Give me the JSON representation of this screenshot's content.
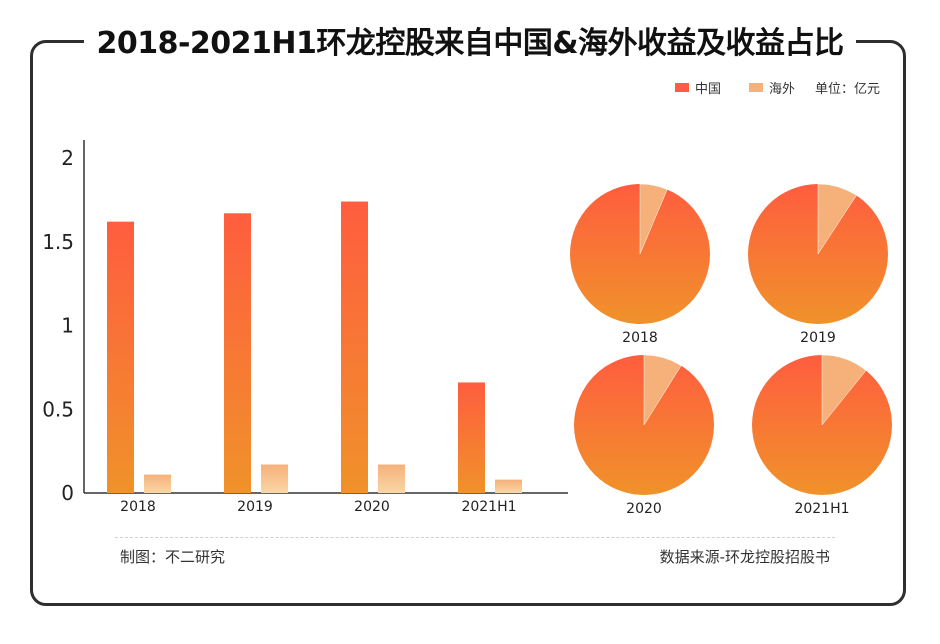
{
  "title": "2018-2021H1环龙控股来自中国&海外收益及收益占比",
  "legend": {
    "china": "中国",
    "overseas": "海外",
    "unit": "单位：亿元"
  },
  "colors": {
    "china_top": "#ff5d3f",
    "china_bottom": "#f0922a",
    "overseas_top": "#f6b07a",
    "overseas_bottom": "#f9d7a6",
    "frame": "#2e2e2e"
  },
  "chart_data": [
    {
      "type": "bar",
      "categories": [
        "2018",
        "2019",
        "2020",
        "2021H1"
      ],
      "series": [
        {
          "name": "中国",
          "values": [
            1.62,
            1.67,
            1.74,
            0.66
          ]
        },
        {
          "name": "海外",
          "values": [
            0.11,
            0.17,
            0.17,
            0.08
          ]
        }
      ],
      "yticks": [
        "0",
        "0.5",
        "1",
        "1.5",
        "2"
      ],
      "ylim": [
        0,
        2
      ],
      "title": "",
      "xlabel": "",
      "ylabel": ""
    },
    {
      "type": "pie",
      "labels": [
        "中国",
        "海外"
      ],
      "charts": [
        {
          "name": "2018",
          "values": [
            1.62,
            0.11
          ]
        },
        {
          "name": "2019",
          "values": [
            1.67,
            0.17
          ]
        },
        {
          "name": "2020",
          "values": [
            1.74,
            0.17
          ]
        },
        {
          "name": "2021H1",
          "values": [
            0.66,
            0.08
          ]
        }
      ]
    }
  ],
  "footer": {
    "credit": "制图：不二研究",
    "source": "数据来源-环龙控股招股书"
  }
}
